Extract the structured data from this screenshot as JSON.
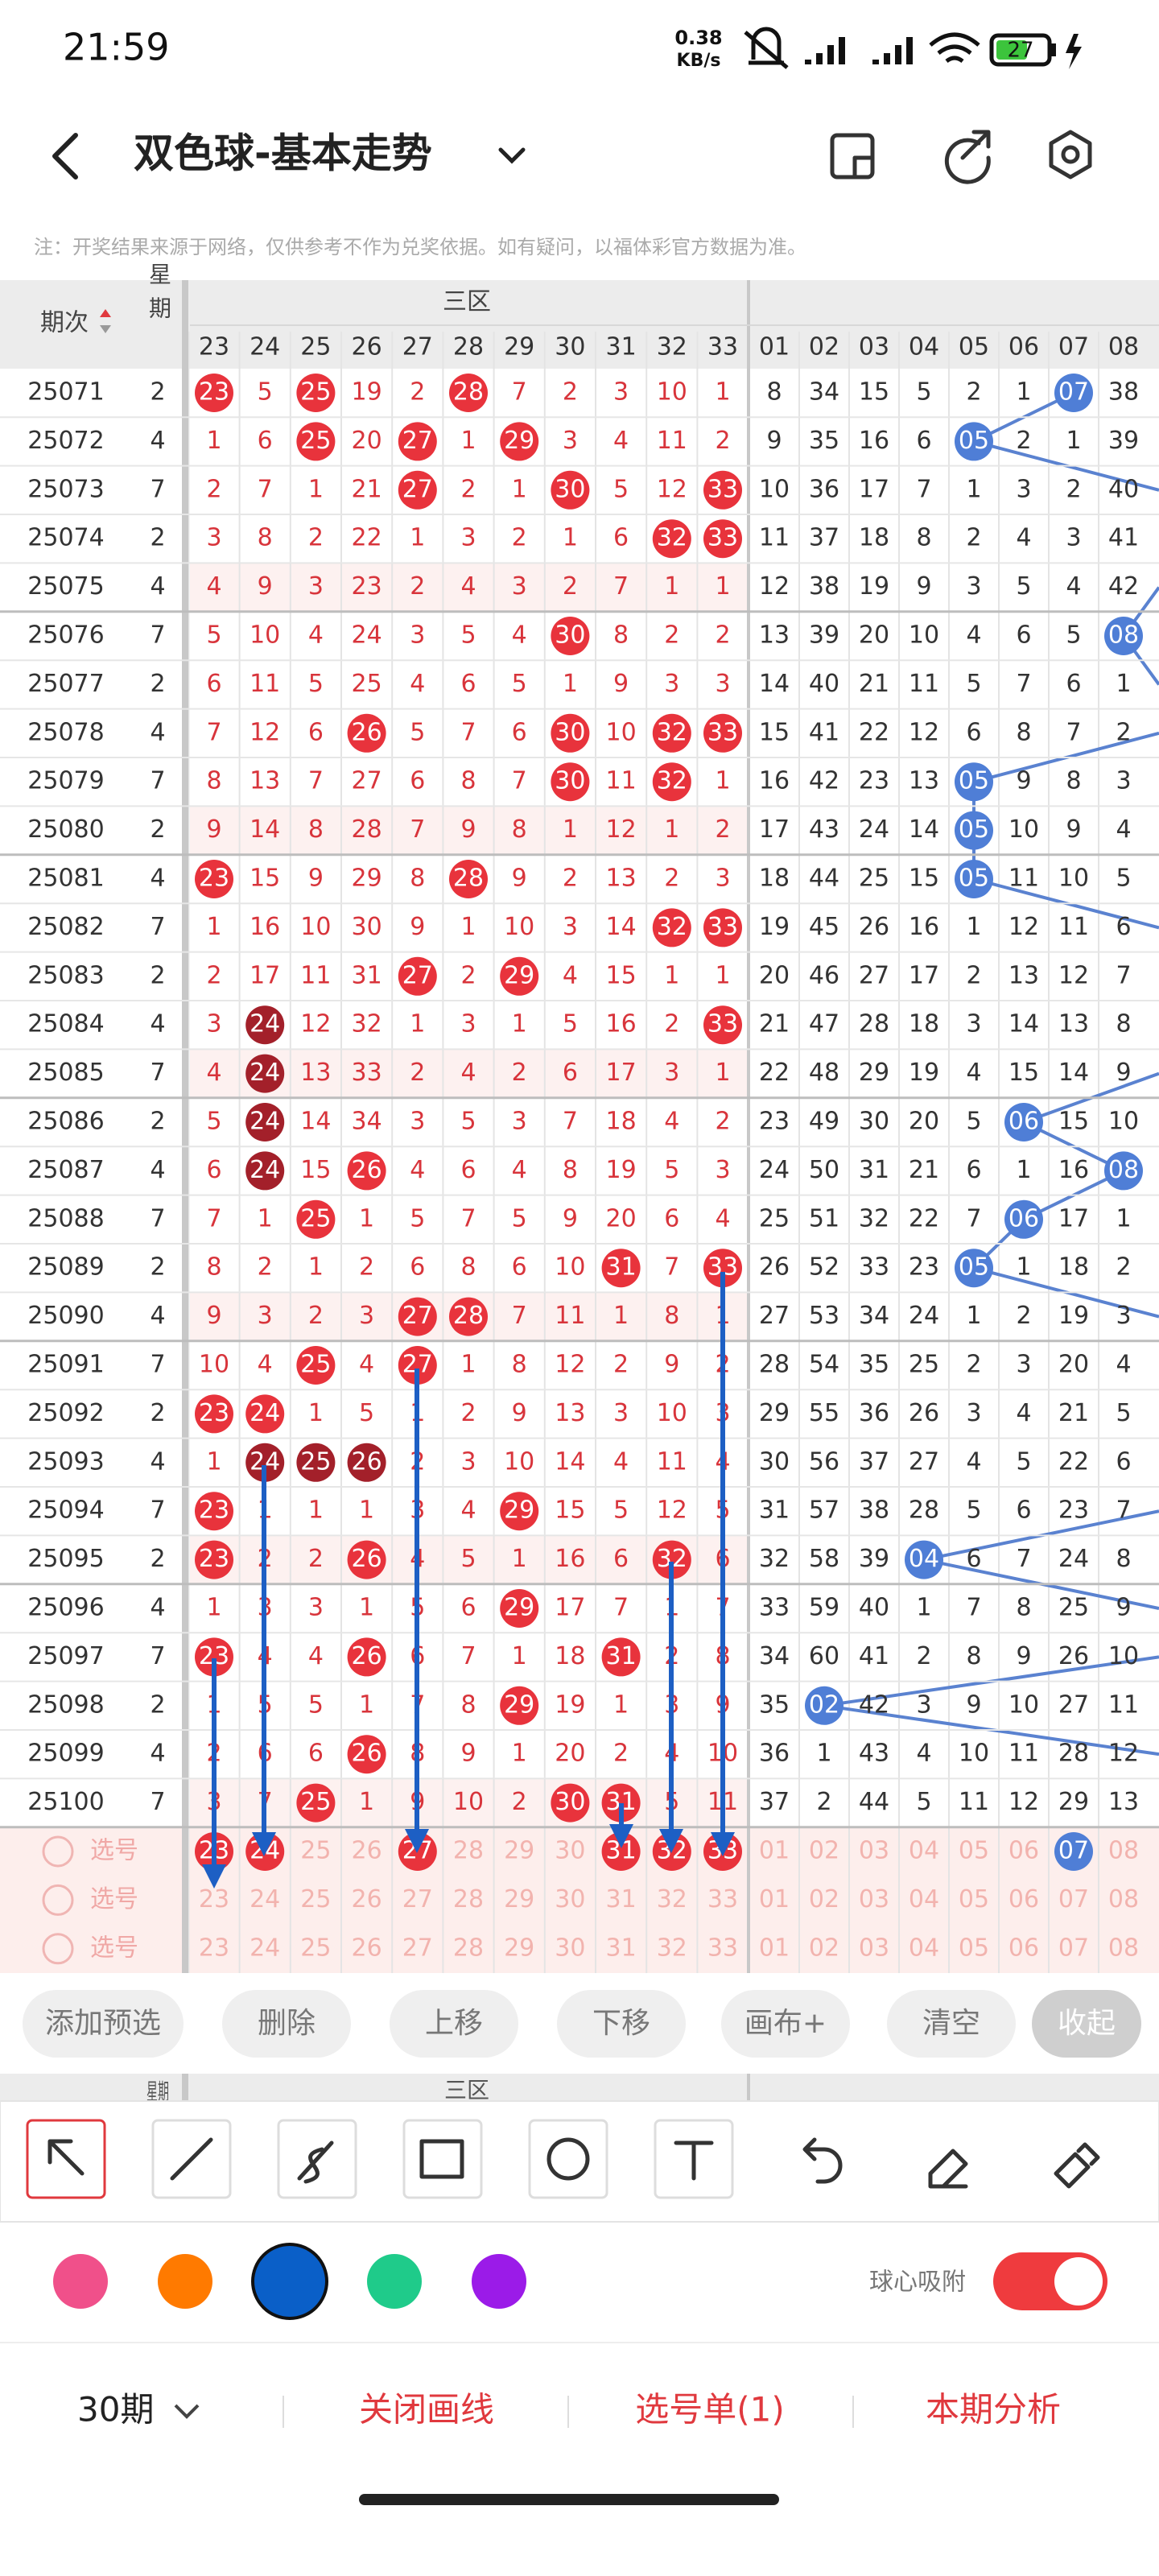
{
  "status": {
    "time": "21:59",
    "speed": "0.38",
    "speed_unit": "KB/s",
    "battery": "27"
  },
  "header": {
    "title": "双色球-基本走势"
  },
  "note": "注：开奖结果来源于网络，仅供参考不作为兑奖依据。如有疑问，以福体彩官方数据为准。",
  "table": {
    "head": {
      "period": "期次",
      "week": "星期",
      "zone": "三区",
      "columns": [
        "23",
        "24",
        "25",
        "26",
        "27",
        "28",
        "29",
        "30",
        "31",
        "32",
        "33",
        "01",
        "02",
        "03",
        "04",
        "05",
        "06",
        "07",
        "08"
      ]
    },
    "rows": [
      [
        "25071",
        "2",
        "23",
        "5",
        "25",
        "19",
        "2",
        "28",
        "7",
        "2",
        "3",
        "10",
        "1",
        "8",
        "34",
        "15",
        "5",
        "2",
        "1",
        "07",
        "38"
      ],
      [
        "25072",
        "4",
        "1",
        "6",
        "25",
        "20",
        "27",
        "1",
        "29",
        "3",
        "4",
        "11",
        "2",
        "9",
        "35",
        "16",
        "6",
        "05",
        "2",
        "1",
        "39"
      ],
      [
        "25073",
        "7",
        "2",
        "7",
        "1",
        "21",
        "27",
        "2",
        "1",
        "30",
        "5",
        "12",
        "33",
        "10",
        "36",
        "17",
        "7",
        "1",
        "3",
        "2",
        "40"
      ],
      [
        "25074",
        "2",
        "3",
        "8",
        "2",
        "22",
        "1",
        "3",
        "2",
        "1",
        "6",
        "32",
        "33",
        "11",
        "37",
        "18",
        "8",
        "2",
        "4",
        "3",
        "41"
      ],
      [
        "25075",
        "4",
        "4",
        "9",
        "3",
        "23",
        "2",
        "4",
        "3",
        "2",
        "7",
        "1",
        "1",
        "12",
        "38",
        "19",
        "9",
        "3",
        "5",
        "4",
        "42"
      ],
      [
        "25076",
        "7",
        "5",
        "10",
        "4",
        "24",
        "3",
        "5",
        "4",
        "30",
        "8",
        "2",
        "2",
        "13",
        "39",
        "20",
        "10",
        "4",
        "6",
        "5",
        "08"
      ],
      [
        "25077",
        "2",
        "6",
        "11",
        "5",
        "25",
        "4",
        "6",
        "5",
        "1",
        "9",
        "3",
        "3",
        "14",
        "40",
        "21",
        "11",
        "5",
        "7",
        "6",
        "1"
      ],
      [
        "25078",
        "4",
        "7",
        "12",
        "6",
        "26",
        "5",
        "7",
        "6",
        "30",
        "10",
        "32",
        "33",
        "15",
        "41",
        "22",
        "12",
        "6",
        "8",
        "7",
        "2"
      ],
      [
        "25079",
        "7",
        "8",
        "13",
        "7",
        "27",
        "6",
        "8",
        "7",
        "30",
        "11",
        "32",
        "1",
        "16",
        "42",
        "23",
        "13",
        "05",
        "9",
        "8",
        "3"
      ],
      [
        "25080",
        "2",
        "9",
        "14",
        "8",
        "28",
        "7",
        "9",
        "8",
        "1",
        "12",
        "1",
        "2",
        "17",
        "43",
        "24",
        "14",
        "05",
        "10",
        "9",
        "4"
      ],
      [
        "25081",
        "4",
        "23",
        "15",
        "9",
        "29",
        "8",
        "28",
        "9",
        "2",
        "13",
        "2",
        "3",
        "18",
        "44",
        "25",
        "15",
        "05",
        "11",
        "10",
        "5"
      ],
      [
        "25082",
        "7",
        "1",
        "16",
        "10",
        "30",
        "9",
        "1",
        "10",
        "3",
        "14",
        "32",
        "33",
        "19",
        "45",
        "26",
        "16",
        "1",
        "12",
        "11",
        "6"
      ],
      [
        "25083",
        "2",
        "2",
        "17",
        "11",
        "31",
        "27",
        "2",
        "29",
        "4",
        "15",
        "1",
        "1",
        "20",
        "46",
        "27",
        "17",
        "2",
        "13",
        "12",
        "7"
      ],
      [
        "25084",
        "4",
        "3",
        "24",
        "12",
        "32",
        "1",
        "3",
        "1",
        "5",
        "16",
        "2",
        "33",
        "21",
        "47",
        "28",
        "18",
        "3",
        "14",
        "13",
        "8"
      ],
      [
        "25085",
        "7",
        "4",
        "24",
        "13",
        "33",
        "2",
        "4",
        "2",
        "6",
        "17",
        "3",
        "1",
        "22",
        "48",
        "29",
        "19",
        "4",
        "15",
        "14",
        "9"
      ],
      [
        "25086",
        "2",
        "5",
        "24",
        "14",
        "34",
        "3",
        "5",
        "3",
        "7",
        "18",
        "4",
        "2",
        "23",
        "49",
        "30",
        "20",
        "5",
        "06",
        "15",
        "10"
      ],
      [
        "25087",
        "4",
        "6",
        "24",
        "15",
        "26",
        "4",
        "6",
        "4",
        "8",
        "19",
        "5",
        "3",
        "24",
        "50",
        "31",
        "21",
        "6",
        "1",
        "16",
        "08"
      ],
      [
        "25088",
        "7",
        "7",
        "1",
        "25",
        "1",
        "5",
        "7",
        "5",
        "9",
        "20",
        "6",
        "4",
        "25",
        "51",
        "32",
        "22",
        "7",
        "06",
        "17",
        "1"
      ],
      [
        "25089",
        "2",
        "8",
        "2",
        "1",
        "2",
        "6",
        "8",
        "6",
        "10",
        "31",
        "7",
        "33",
        "26",
        "52",
        "33",
        "23",
        "05",
        "1",
        "18",
        "2"
      ],
      [
        "25090",
        "4",
        "9",
        "3",
        "2",
        "3",
        "27",
        "28",
        "7",
        "11",
        "1",
        "8",
        "1",
        "27",
        "53",
        "34",
        "24",
        "1",
        "2",
        "19",
        "3"
      ],
      [
        "25091",
        "7",
        "10",
        "4",
        "25",
        "4",
        "27",
        "1",
        "8",
        "12",
        "2",
        "9",
        "2",
        "28",
        "54",
        "35",
        "25",
        "2",
        "3",
        "20",
        "4"
      ],
      [
        "25092",
        "2",
        "23",
        "24",
        "1",
        "5",
        "1",
        "2",
        "9",
        "13",
        "3",
        "10",
        "3",
        "29",
        "55",
        "36",
        "26",
        "3",
        "4",
        "21",
        "5"
      ],
      [
        "25093",
        "4",
        "1",
        "24",
        "25",
        "26",
        "2",
        "3",
        "10",
        "14",
        "4",
        "11",
        "4",
        "30",
        "56",
        "37",
        "27",
        "4",
        "5",
        "22",
        "6"
      ],
      [
        "25094",
        "7",
        "23",
        "1",
        "1",
        "1",
        "3",
        "4",
        "29",
        "15",
        "5",
        "12",
        "5",
        "31",
        "57",
        "38",
        "28",
        "5",
        "6",
        "23",
        "7"
      ],
      [
        "25095",
        "2",
        "23",
        "2",
        "2",
        "26",
        "4",
        "5",
        "1",
        "16",
        "6",
        "32",
        "6",
        "32",
        "58",
        "39",
        "04",
        "6",
        "7",
        "24",
        "8"
      ],
      [
        "25096",
        "4",
        "1",
        "3",
        "3",
        "1",
        "5",
        "6",
        "29",
        "17",
        "7",
        "1",
        "7",
        "33",
        "59",
        "40",
        "1",
        "7",
        "8",
        "25",
        "9"
      ],
      [
        "25097",
        "7",
        "23",
        "4",
        "4",
        "26",
        "6",
        "7",
        "1",
        "18",
        "31",
        "2",
        "8",
        "34",
        "60",
        "41",
        "2",
        "8",
        "9",
        "26",
        "10"
      ],
      [
        "25098",
        "2",
        "1",
        "5",
        "5",
        "1",
        "7",
        "8",
        "29",
        "19",
        "1",
        "3",
        "9",
        "35",
        "02",
        "42",
        "3",
        "9",
        "10",
        "27",
        "11"
      ],
      [
        "25099",
        "4",
        "2",
        "6",
        "6",
        "26",
        "8",
        "9",
        "1",
        "20",
        "2",
        "4",
        "10",
        "36",
        "1",
        "43",
        "4",
        "10",
        "11",
        "28",
        "12"
      ],
      [
        "25100",
        "7",
        "3",
        "7",
        "25",
        "1",
        "9",
        "10",
        "2",
        "30",
        "31",
        "5",
        "11",
        "37",
        "2",
        "44",
        "5",
        "11",
        "12",
        "29",
        "13"
      ]
    ],
    "picks": [
      {
        "label": "选号",
        "selected": [
          "23",
          "24",
          "27",
          "31",
          "32",
          "33",
          "07"
        ]
      },
      {
        "label": "选号",
        "selected": []
      },
      {
        "label": "选号",
        "selected": []
      }
    ]
  },
  "buttons": [
    "添加预选",
    "删除",
    "上移",
    "下移",
    "画布+",
    "清空",
    "收起"
  ],
  "palette": {
    "colors": [
      "#f0508a",
      "#ff7a00",
      "#0a5fc8",
      "#1fcb8a",
      "#9b1be8"
    ],
    "selected": 2
  },
  "snap": {
    "label": "球心吸附",
    "on": true
  },
  "footer": {
    "periods": "30期",
    "close_lines": "关闭画线",
    "pick_list": "选号单(1)",
    "analysis": "本期分析"
  }
}
